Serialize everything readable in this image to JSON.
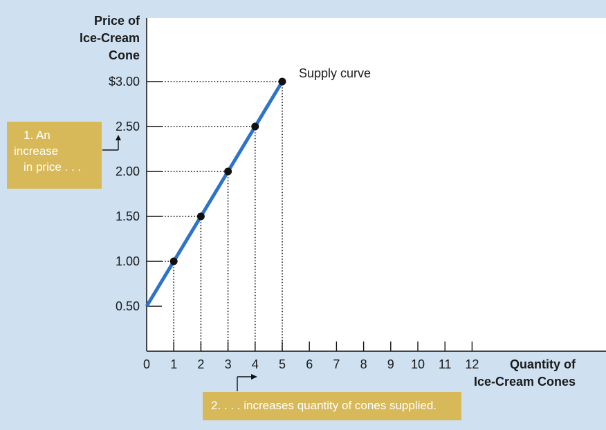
{
  "chart_data": {
    "type": "line",
    "ylabel_lines": [
      "Price of",
      "Ice-Cream",
      "Cone"
    ],
    "xlabel_lines": [
      "Quantity of",
      "Ice-Cream Cones"
    ],
    "x_ticks": [
      "0",
      "1",
      "2",
      "3",
      "4",
      "5",
      "6",
      "7",
      "8",
      "9",
      "10",
      "11",
      "12"
    ],
    "y_ticks": [
      {
        "value": 0.5,
        "label": "0.50"
      },
      {
        "value": 1.0,
        "label": "1.00"
      },
      {
        "value": 1.5,
        "label": "1.50"
      },
      {
        "value": 2.0,
        "label": "2.00"
      },
      {
        "value": 2.5,
        "label": "2.50"
      },
      {
        "value": 3.0,
        "label": "$3.00"
      }
    ],
    "xlim": [
      0,
      12
    ],
    "ylim": [
      0,
      3.0
    ],
    "series": [
      {
        "name": "Supply curve",
        "color": "#2f73c9",
        "line": {
          "x": [
            0,
            5
          ],
          "y": [
            0.5,
            3.0
          ]
        },
        "points": [
          {
            "x": 1,
            "y": 1.0
          },
          {
            "x": 2,
            "y": 1.5
          },
          {
            "x": 3,
            "y": 2.0
          },
          {
            "x": 4,
            "y": 2.5
          },
          {
            "x": 5,
            "y": 3.0
          }
        ]
      }
    ],
    "curve_label": "Supply curve",
    "annotations": {
      "price_note": [
        "1. An",
        "increase",
        "in price . . ."
      ],
      "quantity_note": "2. . . . increases quantity of cones supplied."
    },
    "grid": false
  },
  "colors": {
    "background": "#cfe1f1",
    "plot_area": "#ffffff",
    "note_box": "#d8b95a",
    "curve": "#2f73c9"
  }
}
